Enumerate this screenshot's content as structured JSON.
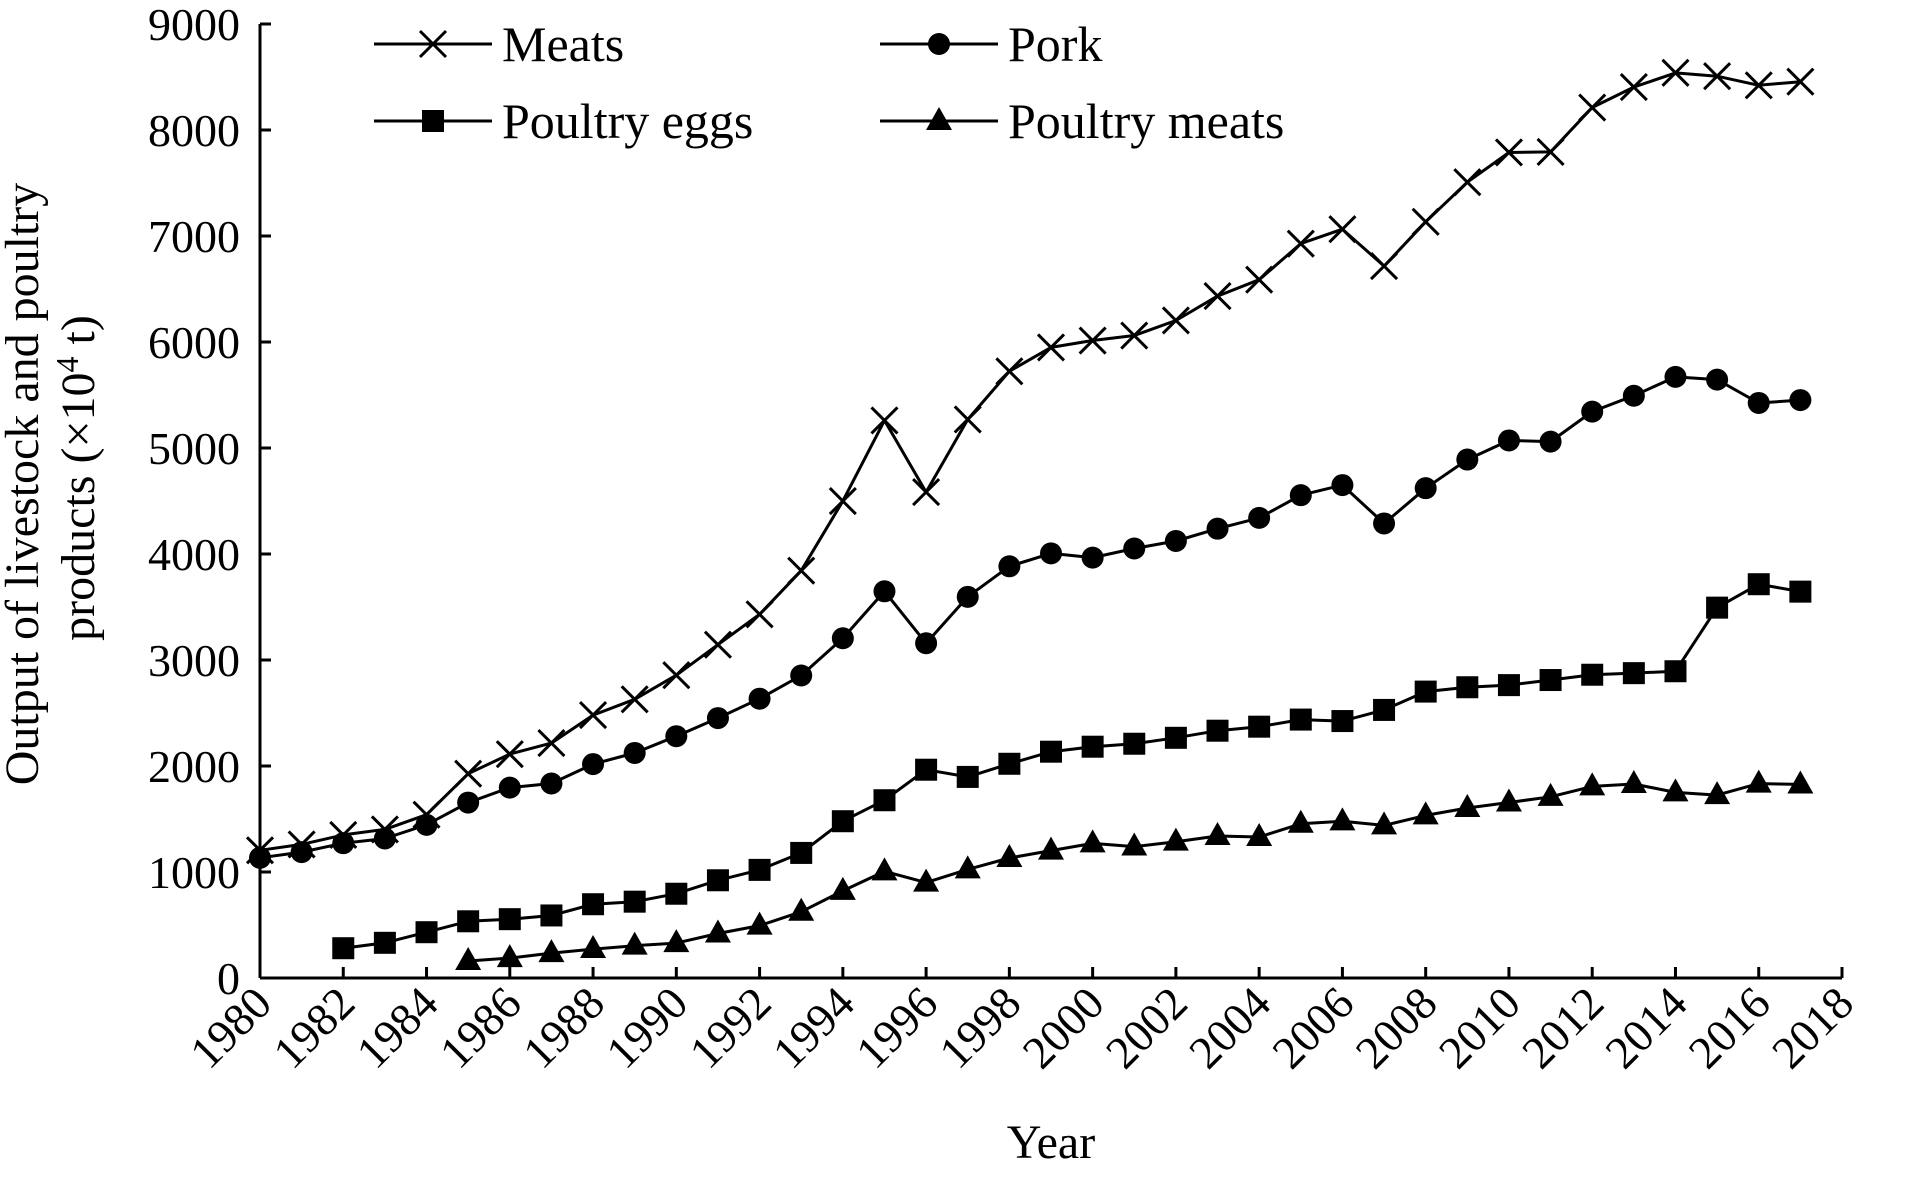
{
  "chart_data": {
    "type": "line",
    "xlabel": "Year",
    "ylabel": "Output of livestock and poultry products (×10⁴ t)",
    "ylabel_lines": [
      "Output of livestock and poultry",
      "products (×10",
      "4",
      " t)"
    ],
    "xlim": [
      1980,
      2018
    ],
    "ylim": [
      0,
      9000
    ],
    "x_ticks": [
      1980,
      1982,
      1984,
      1986,
      1988,
      1990,
      1992,
      1994,
      1996,
      1998,
      2000,
      2002,
      2004,
      2006,
      2008,
      2010,
      2012,
      2014,
      2016,
      2018
    ],
    "y_ticks": [
      0,
      1000,
      2000,
      3000,
      4000,
      5000,
      6000,
      7000,
      8000,
      9000
    ],
    "grid": false,
    "legend_position": "top",
    "series": [
      {
        "name": "Meats",
        "marker": "cross",
        "x": [
          1980,
          1981,
          1982,
          1983,
          1984,
          1985,
          1986,
          1987,
          1988,
          1989,
          1990,
          1991,
          1992,
          1993,
          1994,
          1995,
          1996,
          1997,
          1998,
          1999,
          2000,
          2001,
          2002,
          2003,
          2004,
          2005,
          2006,
          2007,
          2008,
          2009,
          2010,
          2011,
          2012,
          2013,
          2014,
          2015,
          2016,
          2017
        ],
        "values": [
          1205,
          1260,
          1350,
          1402,
          1541,
          1927,
          2112,
          2216,
          2480,
          2629,
          2857,
          3144,
          3431,
          3842,
          4499,
          5260,
          4584,
          5269,
          5724,
          5949,
          6014,
          6061,
          6203,
          6433,
          6588,
          6928,
          7064,
          6716,
          7134,
          7508,
          7788,
          7793,
          8212,
          8405,
          8539,
          8508,
          8422,
          8456
        ]
      },
      {
        "name": "Pork",
        "marker": "circle",
        "x": [
          1980,
          1981,
          1982,
          1983,
          1984,
          1985,
          1986,
          1987,
          1988,
          1989,
          1990,
          1991,
          1992,
          1993,
          1994,
          1995,
          1996,
          1997,
          1998,
          1999,
          2000,
          2001,
          2002,
          2003,
          2004,
          2005,
          2006,
          2007,
          2008,
          2009,
          2010,
          2011,
          2012,
          2013,
          2014,
          2015,
          2016,
          2017
        ],
        "values": [
          1134,
          1188,
          1272,
          1316,
          1445,
          1655,
          1796,
          1835,
          2018,
          2123,
          2281,
          2452,
          2635,
          2854,
          3205,
          3648,
          3158,
          3596,
          3884,
          4006,
          3966,
          4052,
          4123,
          4239,
          4341,
          4555,
          4650,
          4288,
          4621,
          4891,
          5071,
          5060,
          5343,
          5493,
          5671,
          5645,
          5425,
          5452
        ]
      },
      {
        "name": "Poultry eggs",
        "marker": "square",
        "x": [
          1982,
          1983,
          1984,
          1985,
          1986,
          1987,
          1988,
          1989,
          1990,
          1991,
          1992,
          1993,
          1994,
          1995,
          1996,
          1997,
          1998,
          1999,
          2000,
          2001,
          2002,
          2003,
          2004,
          2005,
          2006,
          2007,
          2008,
          2009,
          2010,
          2011,
          2012,
          2013,
          2014,
          2015,
          2016,
          2017
        ],
        "values": [
          281,
          332,
          432,
          535,
          555,
          590,
          696,
          720,
          795,
          922,
          1020,
          1180,
          1479,
          1677,
          1965,
          1897,
          2021,
          2135,
          2182,
          2210,
          2266,
          2333,
          2371,
          2438,
          2424,
          2529,
          2702,
          2743,
          2763,
          2811,
          2861,
          2876,
          2894,
          3494,
          3715,
          3645
        ]
      },
      {
        "name": "Poultry meats",
        "marker": "triangle",
        "x": [
          1985,
          1986,
          1987,
          1988,
          1989,
          1990,
          1991,
          1992,
          1993,
          1994,
          1995,
          1996,
          1997,
          1998,
          1999,
          2000,
          2001,
          2002,
          2003,
          2004,
          2005,
          2006,
          2007,
          2008,
          2009,
          2010,
          2011,
          2012,
          2013,
          2014,
          2015,
          2016,
          2017
        ],
        "values": [
          160,
          188,
          235,
          273,
          305,
          329,
          420,
          494,
          625,
          822,
          1006,
          900,
          1025,
          1132,
          1202,
          1270,
          1240,
          1286,
          1340,
          1330,
          1455,
          1478,
          1440,
          1534,
          1604,
          1656,
          1709,
          1808,
          1830,
          1751,
          1725,
          1834,
          1826
        ]
      }
    ]
  }
}
